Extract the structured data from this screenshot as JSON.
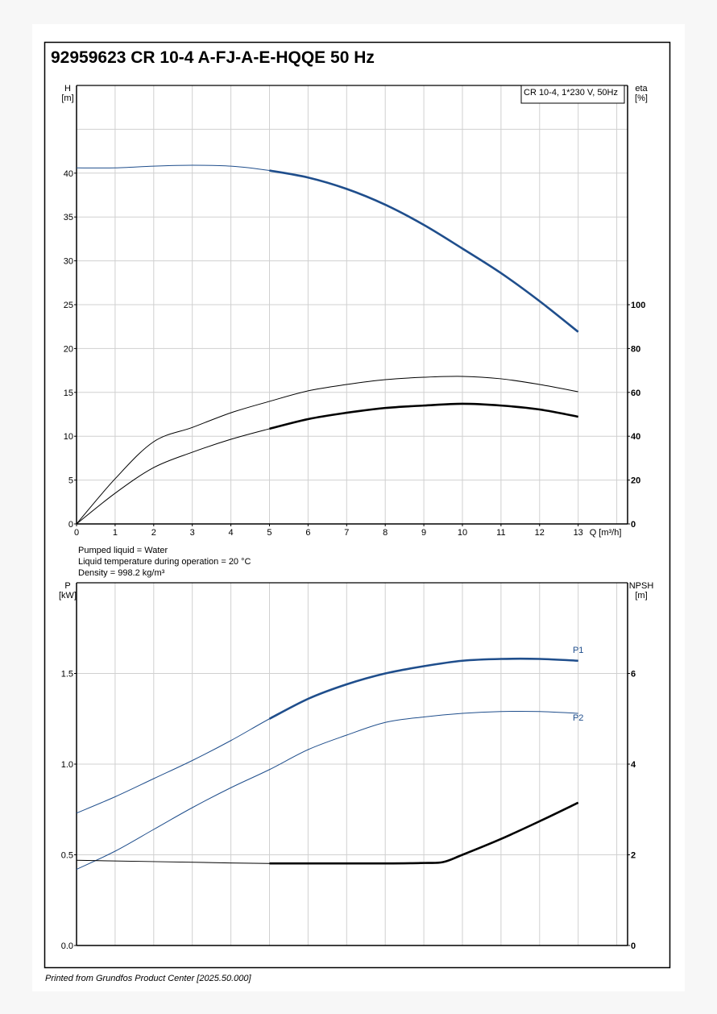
{
  "title": "92959623 CR 10-4 A-FJ-A-E-HQQE 50 Hz",
  "footer": "Printed from Grundfos Product Center [2025.50.000]",
  "liquid_info": {
    "line1": "Pumped liquid = Water",
    "line2": "Liquid temperature during operation = 20 °C",
    "line3": "Density = 998.2 kg/m³"
  },
  "colors": {
    "blue": "#1f4e8c",
    "black": "#000000",
    "grid": "#d0d0d0"
  },
  "chart_data": [
    {
      "type": "line",
      "name": "head-efficiency",
      "legend": "CR 10-4, 1*230 V, 50Hz",
      "legend_placement": "top-right",
      "xlabel": "Q [m³/h]",
      "ylabel_left": {
        "name": "H",
        "unit": "[m]"
      },
      "ylabel_right": {
        "name": "eta",
        "unit": "[%]"
      },
      "xlim": [
        0,
        14.28
      ],
      "ylim_left": [
        0,
        50
      ],
      "ylim_right": [
        0,
        200
      ],
      "x_ticks": [
        0,
        1,
        2,
        3,
        4,
        5,
        6,
        7,
        8,
        9,
        10,
        11,
        12,
        13
      ],
      "y_ticks_left": [
        0,
        5,
        10,
        15,
        20,
        25,
        30,
        35,
        40
      ],
      "y_ticks_right": [
        0,
        20,
        40,
        60,
        80,
        100
      ],
      "grid": true,
      "series": [
        {
          "name": "H",
          "axis": "left",
          "color": "#1f4e8c",
          "duty_from": 5,
          "x": [
            0,
            1,
            2,
            3,
            4,
            5,
            6,
            7,
            8,
            9,
            10,
            11,
            12,
            13
          ],
          "y": [
            40.6,
            40.6,
            40.8,
            40.9,
            40.8,
            40.3,
            39.5,
            38.2,
            36.4,
            34.1,
            31.4,
            28.6,
            25.4,
            21.9
          ]
        },
        {
          "name": "eta pump",
          "axis": "right",
          "color": "#000000",
          "duty_from": 99,
          "x": [
            0,
            1,
            2,
            3,
            4,
            5,
            6,
            7,
            8,
            9,
            10,
            11,
            12,
            13
          ],
          "y": [
            0,
            20.6,
            37.5,
            44,
            50.7,
            55.9,
            60.7,
            63.6,
            65.8,
            66.9,
            67.3,
            66.2,
            63.6,
            60.3
          ]
        },
        {
          "name": "eta total",
          "axis": "right",
          "color": "#000000",
          "duty_from": 5,
          "x": [
            0,
            1,
            2,
            3,
            4,
            5,
            6,
            7,
            8,
            9,
            10,
            11,
            12,
            13
          ],
          "y": [
            0,
            14,
            25.7,
            32.7,
            38.6,
            43.4,
            47.8,
            50.7,
            52.9,
            54,
            54.8,
            54,
            52.2,
            48.9
          ]
        }
      ]
    },
    {
      "type": "line",
      "name": "power-npsh",
      "xlabel": "",
      "ylabel_left": {
        "name": "P",
        "unit": "[kW]"
      },
      "ylabel_right": {
        "name": "NPSH",
        "unit": "[m]"
      },
      "xlim": [
        0,
        14.28
      ],
      "ylim_left": [
        0,
        2
      ],
      "ylim_right": [
        0,
        8
      ],
      "y_ticks_left": [
        "0.0",
        "0.5",
        "1.0",
        "1.5"
      ],
      "y_ticks_right": [
        0,
        2,
        4,
        6
      ],
      "grid": true,
      "series": [
        {
          "name": "P1",
          "label": "P1",
          "axis": "left",
          "color": "#1f4e8c",
          "duty_from": 5,
          "x": [
            0,
            1,
            2,
            3,
            4,
            5,
            6,
            7,
            8,
            9,
            10,
            11,
            12,
            13
          ],
          "y": [
            0.73,
            0.82,
            0.92,
            1.02,
            1.13,
            1.25,
            1.36,
            1.44,
            1.5,
            1.54,
            1.57,
            1.58,
            1.58,
            1.57
          ]
        },
        {
          "name": "P2",
          "label": "P2",
          "axis": "left",
          "color": "#1f4e8c",
          "duty_from": 99,
          "x": [
            0,
            1,
            2,
            3,
            4,
            5,
            6,
            7,
            8,
            9,
            10,
            11,
            12,
            13
          ],
          "y": [
            0.42,
            0.52,
            0.64,
            0.76,
            0.87,
            0.97,
            1.08,
            1.16,
            1.23,
            1.26,
            1.28,
            1.29,
            1.29,
            1.28
          ]
        },
        {
          "name": "NPSH",
          "axis": "right",
          "color": "#000000",
          "duty_from": 5,
          "x": [
            0,
            2,
            5,
            8,
            9,
            9.5,
            10,
            11,
            12,
            13
          ],
          "y": [
            1.88,
            1.85,
            1.81,
            1.81,
            1.82,
            1.84,
            2.0,
            2.35,
            2.74,
            3.15
          ]
        }
      ]
    }
  ]
}
